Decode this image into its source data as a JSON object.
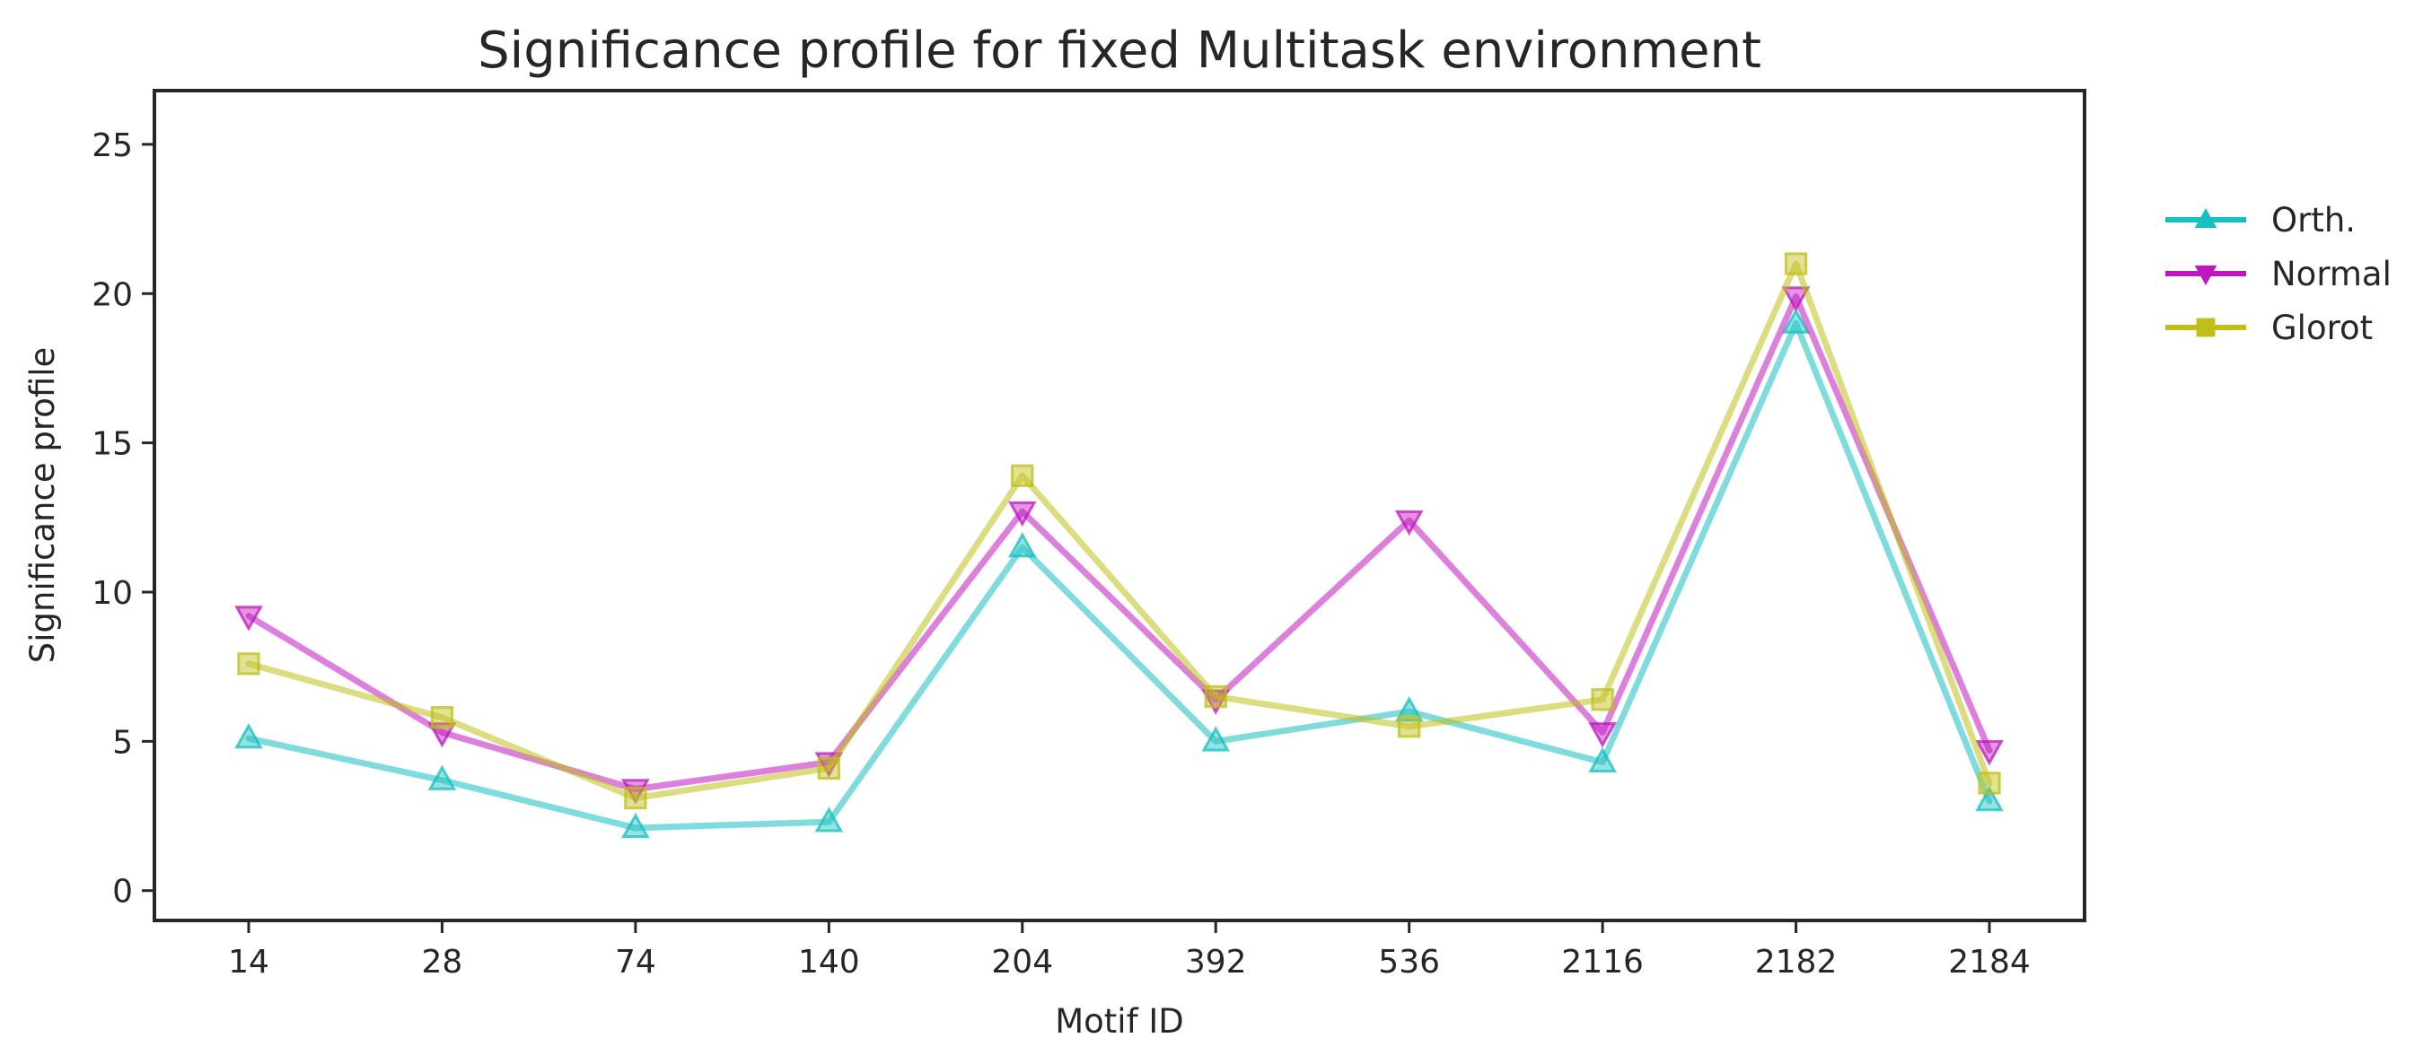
{
  "chart_data": {
    "type": "line",
    "title": "Significance profile for fixed Multitask environment",
    "xlabel": "Motif ID",
    "ylabel": "Significance profile",
    "categories": [
      "14",
      "28",
      "74",
      "140",
      "204",
      "392",
      "536",
      "2116",
      "2182",
      "2184"
    ],
    "ylim": [
      -1,
      26.8
    ],
    "yticks": [
      0,
      5,
      10,
      15,
      20,
      25
    ],
    "grid": false,
    "legend_position": "upper right, outside plot area",
    "series": [
      {
        "name": "Orth.",
        "color": "#17bfbf",
        "marker": "triangle-up",
        "values": [
          5.1,
          3.7,
          2.1,
          2.3,
          11.5,
          5.0,
          6.0,
          4.3,
          19.0,
          3.0
        ]
      },
      {
        "name": "Normal",
        "color": "#bf17bf",
        "marker": "triangle-down",
        "values": [
          9.2,
          5.3,
          3.4,
          4.3,
          12.7,
          6.4,
          12.4,
          5.3,
          19.9,
          4.7
        ]
      },
      {
        "name": "Glorot",
        "color": "#bfbf17",
        "marker": "square",
        "values": [
          7.6,
          5.8,
          3.1,
          4.1,
          13.9,
          6.5,
          5.5,
          6.4,
          21.0,
          3.6
        ]
      }
    ]
  }
}
